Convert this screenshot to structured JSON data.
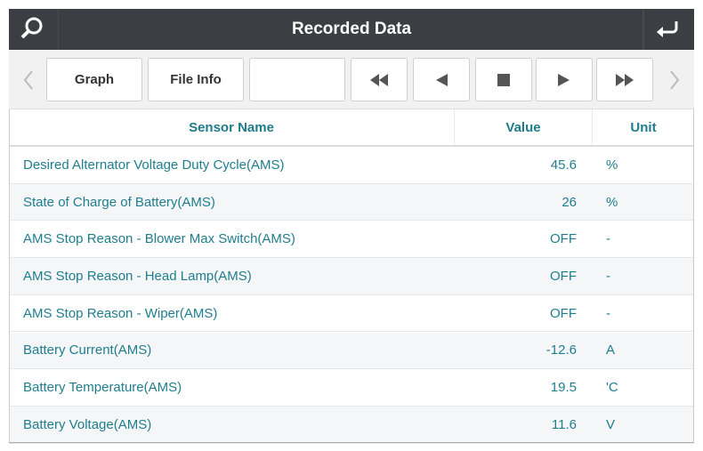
{
  "header": {
    "title": "Recorded Data"
  },
  "toolbar": {
    "buttons": [
      "Graph",
      "File Info"
    ]
  },
  "table": {
    "columns": [
      "Sensor Name",
      "Value",
      "Unit"
    ],
    "rows": [
      [
        "Desired Alternator Voltage Duty Cycle(AMS)",
        "45.6",
        "%"
      ],
      [
        "State of Charge of Battery(AMS)",
        "26",
        "%"
      ],
      [
        "AMS Stop Reason - Blower Max Switch(AMS)",
        "OFF",
        "-"
      ],
      [
        "AMS Stop Reason - Head Lamp(AMS)",
        "OFF",
        "-"
      ],
      [
        "AMS Stop Reason - Wiper(AMS)",
        "OFF",
        "-"
      ],
      [
        "Battery Current(AMS)",
        "-12.6",
        "A"
      ],
      [
        "Battery Temperature(AMS)",
        "19.5",
        "'C"
      ],
      [
        "Battery Voltage(AMS)",
        "11.6",
        "V"
      ]
    ]
  }
}
